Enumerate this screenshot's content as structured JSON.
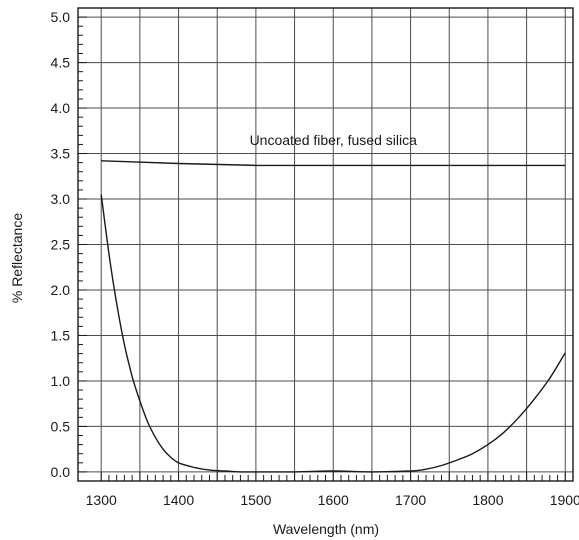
{
  "chart_data": {
    "type": "line",
    "xlabel": "Wavelength (nm)",
    "ylabel": "% Reflectance",
    "xlim": [
      1270,
      1910
    ],
    "ylim": [
      -0.1,
      5.1
    ],
    "x_ticks": [
      1300,
      1400,
      1500,
      1600,
      1700,
      1800,
      1900
    ],
    "x_tick_labels": [
      "1300",
      "1400",
      "1500",
      "1600",
      "1700",
      "1800",
      "1900"
    ],
    "y_ticks": [
      0.0,
      0.5,
      1.0,
      1.5,
      2.0,
      2.5,
      3.0,
      3.5,
      4.0,
      4.5,
      5.0
    ],
    "y_tick_labels": [
      "0.0",
      "0.5",
      "1.0",
      "1.5",
      "2.0",
      "2.5",
      "3.0",
      "3.5",
      "4.0",
      "4.5",
      "5.0"
    ],
    "x_grid": [
      1300,
      1350,
      1400,
      1450,
      1500,
      1550,
      1600,
      1650,
      1700,
      1750,
      1800,
      1850,
      1900
    ],
    "grid": true,
    "annotations": [
      {
        "text": "Uncoated fiber, fused silica",
        "x": 1600,
        "y": 3.65
      }
    ],
    "series": [
      {
        "x": [
          1300,
          1400,
          1500,
          1600,
          1700,
          1800,
          1900
        ],
        "y": [
          3.42,
          3.39,
          3.37,
          3.37,
          3.37,
          3.37,
          3.37
        ]
      },
      {
        "x": [
          1300,
          1310,
          1320,
          1330,
          1340,
          1350,
          1360,
          1370,
          1380,
          1390,
          1400,
          1420,
          1440,
          1460,
          1480,
          1500,
          1550,
          1600,
          1650,
          1700,
          1720,
          1740,
          1760,
          1780,
          1800,
          1820,
          1840,
          1860,
          1880,
          1900
        ],
        "y": [
          3.05,
          2.4,
          1.85,
          1.4,
          1.05,
          0.78,
          0.55,
          0.38,
          0.25,
          0.16,
          0.1,
          0.05,
          0.02,
          0.01,
          0.0,
          0.0,
          0.0,
          0.01,
          0.0,
          0.01,
          0.03,
          0.07,
          0.13,
          0.2,
          0.3,
          0.43,
          0.6,
          0.8,
          1.03,
          1.31
        ]
      }
    ],
    "colors": {
      "line": "#1a1a1a",
      "grid": "#4d4d4d",
      "frame": "#1a1a1a",
      "background": "#ffffff"
    }
  }
}
